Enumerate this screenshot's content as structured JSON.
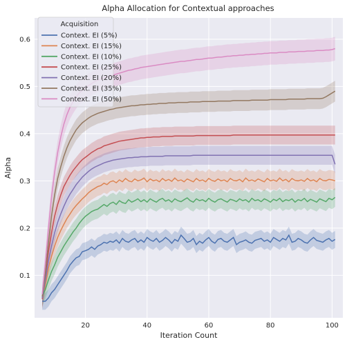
{
  "chart_data": {
    "type": "line",
    "title": "Alpha Allocation for Contextual approaches",
    "xlabel": "Iteration Count",
    "ylabel": "Alpha",
    "xlim": [
      3.5,
      103.5
    ],
    "ylim": [
      0.01,
      0.645
    ],
    "xticks": [
      20,
      40,
      60,
      80,
      100
    ],
    "yticks": [
      0.1,
      0.2,
      0.3,
      0.4,
      0.5,
      0.6
    ],
    "grid": true,
    "background": "#eaeaf2",
    "legend": {
      "title": "Acquisition",
      "placement": "top-left"
    },
    "band_halfwidth": [
      0.018,
      0.02,
      0.02,
      0.02,
      0.02,
      0.022,
      0.025
    ],
    "x": [
      6,
      7,
      8,
      9,
      10,
      11,
      12,
      13,
      14,
      15,
      16,
      17,
      18,
      19,
      20,
      21,
      22,
      23,
      24,
      25,
      26,
      27,
      28,
      29,
      30,
      31,
      32,
      33,
      34,
      35,
      36,
      37,
      38,
      39,
      40,
      41,
      42,
      43,
      44,
      45,
      46,
      47,
      48,
      49,
      50,
      51,
      52,
      53,
      54,
      55,
      56,
      57,
      58,
      59,
      60,
      61,
      62,
      63,
      64,
      65,
      66,
      67,
      68,
      69,
      70,
      71,
      72,
      73,
      74,
      75,
      76,
      77,
      78,
      79,
      80,
      81,
      82,
      83,
      84,
      85,
      86,
      87,
      88,
      89,
      90,
      91,
      92,
      93,
      94,
      95,
      96,
      97,
      98,
      99,
      100,
      101
    ],
    "series": [
      {
        "name": "Context. EI (5%)",
        "color": "#4c72b0",
        "values": [
          0.045,
          0.045,
          0.052,
          0.063,
          0.07,
          0.08,
          0.09,
          0.1,
          0.11,
          0.122,
          0.13,
          0.137,
          0.14,
          0.15,
          0.152,
          0.155,
          0.16,
          0.155,
          0.162,
          0.165,
          0.17,
          0.168,
          0.172,
          0.17,
          0.175,
          0.168,
          0.178,
          0.172,
          0.17,
          0.175,
          0.178,
          0.17,
          0.175,
          0.17,
          0.18,
          0.175,
          0.172,
          0.178,
          0.17,
          0.174,
          0.18,
          0.175,
          0.168,
          0.176,
          0.172,
          0.185,
          0.178,
          0.17,
          0.172,
          0.178,
          0.165,
          0.172,
          0.168,
          0.175,
          0.18,
          0.172,
          0.168,
          0.176,
          0.178,
          0.172,
          0.17,
          0.175,
          0.18,
          0.165,
          0.17,
          0.172,
          0.175,
          0.17,
          0.168,
          0.174,
          0.176,
          0.178,
          0.172,
          0.175,
          0.17,
          0.18,
          0.176,
          0.172,
          0.178,
          0.175,
          0.185,
          0.17,
          0.172,
          0.178,
          0.175,
          0.17,
          0.168,
          0.175,
          0.18,
          0.174,
          0.172,
          0.17,
          0.175,
          0.178,
          0.172,
          0.176
        ]
      },
      {
        "name": "Context. EI (15%)",
        "color": "#dd8452",
        "values": [
          0.05,
          0.08,
          0.115,
          0.14,
          0.162,
          0.18,
          0.195,
          0.208,
          0.22,
          0.23,
          0.24,
          0.248,
          0.255,
          0.262,
          0.268,
          0.275,
          0.28,
          0.284,
          0.288,
          0.29,
          0.295,
          0.292,
          0.298,
          0.3,
          0.296,
          0.302,
          0.298,
          0.305,
          0.3,
          0.298,
          0.304,
          0.3,
          0.302,
          0.306,
          0.298,
          0.304,
          0.3,
          0.302,
          0.298,
          0.305,
          0.3,
          0.303,
          0.299,
          0.306,
          0.3,
          0.302,
          0.298,
          0.304,
          0.301,
          0.298,
          0.305,
          0.3,
          0.302,
          0.298,
          0.305,
          0.301,
          0.299,
          0.304,
          0.3,
          0.302,
          0.298,
          0.305,
          0.301,
          0.3,
          0.303,
          0.298,
          0.306,
          0.3,
          0.302,
          0.299,
          0.304,
          0.301,
          0.298,
          0.305,
          0.3,
          0.302,
          0.299,
          0.306,
          0.3,
          0.303,
          0.298,
          0.305,
          0.301,
          0.3,
          0.302,
          0.299,
          0.305,
          0.3,
          0.302,
          0.298,
          0.305,
          0.301,
          0.3,
          0.303,
          0.302,
          0.3
        ]
      },
      {
        "name": "Context. EI (10%)",
        "color": "#55a868",
        "values": [
          0.055,
          0.07,
          0.09,
          0.108,
          0.122,
          0.138,
          0.15,
          0.162,
          0.172,
          0.182,
          0.192,
          0.2,
          0.21,
          0.218,
          0.225,
          0.23,
          0.235,
          0.238,
          0.24,
          0.245,
          0.25,
          0.246,
          0.252,
          0.255,
          0.25,
          0.258,
          0.254,
          0.252,
          0.26,
          0.255,
          0.258,
          0.262,
          0.256,
          0.26,
          0.255,
          0.262,
          0.258,
          0.255,
          0.26,
          0.263,
          0.257,
          0.26,
          0.255,
          0.262,
          0.258,
          0.256,
          0.26,
          0.264,
          0.258,
          0.255,
          0.262,
          0.258,
          0.26,
          0.256,
          0.263,
          0.258,
          0.255,
          0.26,
          0.262,
          0.258,
          0.255,
          0.261,
          0.259,
          0.256,
          0.262,
          0.258,
          0.26,
          0.255,
          0.263,
          0.258,
          0.26,
          0.256,
          0.262,
          0.259,
          0.255,
          0.261,
          0.258,
          0.263,
          0.256,
          0.26,
          0.258,
          0.262,
          0.255,
          0.26,
          0.258,
          0.263,
          0.256,
          0.261,
          0.258,
          0.255,
          0.262,
          0.259,
          0.256,
          0.263,
          0.26,
          0.265
        ]
      },
      {
        "name": "Context. EI (25%)",
        "color": "#c44e52",
        "values": [
          0.05,
          0.1,
          0.15,
          0.19,
          0.225,
          0.25,
          0.27,
          0.288,
          0.3,
          0.312,
          0.322,
          0.33,
          0.338,
          0.345,
          0.35,
          0.355,
          0.36,
          0.364,
          0.368,
          0.37,
          0.374,
          0.376,
          0.378,
          0.38,
          0.382,
          0.384,
          0.385,
          0.386,
          0.387,
          0.388,
          0.389,
          0.39,
          0.391,
          0.391,
          0.392,
          0.392,
          0.393,
          0.393,
          0.393,
          0.394,
          0.394,
          0.394,
          0.394,
          0.395,
          0.395,
          0.395,
          0.395,
          0.395,
          0.395,
          0.395,
          0.396,
          0.396,
          0.396,
          0.396,
          0.396,
          0.396,
          0.396,
          0.396,
          0.396,
          0.396,
          0.396,
          0.396,
          0.397,
          0.397,
          0.397,
          0.397,
          0.397,
          0.397,
          0.397,
          0.397,
          0.397,
          0.397,
          0.397,
          0.397,
          0.397,
          0.397,
          0.397,
          0.397,
          0.397,
          0.397,
          0.397,
          0.397,
          0.397,
          0.397,
          0.397,
          0.397,
          0.397,
          0.397,
          0.397,
          0.397,
          0.397,
          0.397,
          0.397,
          0.397,
          0.397,
          0.397
        ]
      },
      {
        "name": "Context. EI (20%)",
        "color": "#8172b2",
        "values": [
          0.052,
          0.09,
          0.13,
          0.162,
          0.19,
          0.212,
          0.23,
          0.246,
          0.26,
          0.272,
          0.282,
          0.292,
          0.3,
          0.308,
          0.314,
          0.32,
          0.325,
          0.329,
          0.332,
          0.335,
          0.338,
          0.34,
          0.342,
          0.344,
          0.345,
          0.346,
          0.347,
          0.348,
          0.349,
          0.349,
          0.35,
          0.35,
          0.351,
          0.351,
          0.351,
          0.352,
          0.352,
          0.352,
          0.352,
          0.352,
          0.353,
          0.353,
          0.353,
          0.353,
          0.353,
          0.353,
          0.353,
          0.353,
          0.353,
          0.354,
          0.354,
          0.354,
          0.354,
          0.354,
          0.354,
          0.354,
          0.354,
          0.354,
          0.354,
          0.354,
          0.354,
          0.354,
          0.354,
          0.354,
          0.354,
          0.354,
          0.354,
          0.354,
          0.354,
          0.354,
          0.354,
          0.354,
          0.354,
          0.354,
          0.354,
          0.354,
          0.354,
          0.354,
          0.354,
          0.354,
          0.354,
          0.354,
          0.354,
          0.354,
          0.354,
          0.354,
          0.354,
          0.354,
          0.354,
          0.354,
          0.354,
          0.354,
          0.354,
          0.354,
          0.354,
          0.335
        ]
      },
      {
        "name": "Context. EI (35%)",
        "color": "#937860",
        "values": [
          0.055,
          0.105,
          0.17,
          0.225,
          0.27,
          0.305,
          0.33,
          0.352,
          0.37,
          0.385,
          0.397,
          0.408,
          0.416,
          0.423,
          0.428,
          0.433,
          0.437,
          0.44,
          0.443,
          0.445,
          0.447,
          0.449,
          0.451,
          0.452,
          0.454,
          0.455,
          0.456,
          0.457,
          0.458,
          0.459,
          0.459,
          0.46,
          0.461,
          0.461,
          0.462,
          0.462,
          0.463,
          0.463,
          0.464,
          0.464,
          0.464,
          0.465,
          0.465,
          0.465,
          0.466,
          0.466,
          0.466,
          0.466,
          0.467,
          0.467,
          0.467,
          0.467,
          0.468,
          0.468,
          0.468,
          0.468,
          0.468,
          0.469,
          0.469,
          0.469,
          0.469,
          0.469,
          0.47,
          0.47,
          0.47,
          0.47,
          0.47,
          0.47,
          0.471,
          0.471,
          0.471,
          0.471,
          0.471,
          0.471,
          0.472,
          0.472,
          0.472,
          0.472,
          0.472,
          0.472,
          0.473,
          0.473,
          0.473,
          0.473,
          0.473,
          0.473,
          0.474,
          0.474,
          0.474,
          0.474,
          0.474,
          0.475,
          0.478,
          0.482,
          0.486,
          0.49
        ]
      },
      {
        "name": "Context. EI (50%)",
        "color": "#da8bc3",
        "values": [
          0.06,
          0.125,
          0.2,
          0.265,
          0.318,
          0.36,
          0.393,
          0.42,
          0.44,
          0.456,
          0.468,
          0.478,
          0.486,
          0.492,
          0.497,
          0.502,
          0.506,
          0.51,
          0.513,
          0.516,
          0.518,
          0.52,
          0.522,
          0.524,
          0.526,
          0.528,
          0.53,
          0.532,
          0.534,
          0.535,
          0.537,
          0.538,
          0.54,
          0.541,
          0.542,
          0.543,
          0.544,
          0.545,
          0.546,
          0.547,
          0.548,
          0.549,
          0.55,
          0.551,
          0.552,
          0.553,
          0.553,
          0.554,
          0.555,
          0.556,
          0.557,
          0.557,
          0.558,
          0.559,
          0.56,
          0.56,
          0.561,
          0.562,
          0.562,
          0.563,
          0.564,
          0.564,
          0.565,
          0.565,
          0.566,
          0.566,
          0.567,
          0.567,
          0.568,
          0.568,
          0.569,
          0.569,
          0.57,
          0.57,
          0.571,
          0.571,
          0.571,
          0.572,
          0.572,
          0.572,
          0.573,
          0.573,
          0.573,
          0.574,
          0.574,
          0.574,
          0.575,
          0.575,
          0.575,
          0.576,
          0.576,
          0.576,
          0.577,
          0.577,
          0.578,
          0.58
        ]
      }
    ]
  }
}
